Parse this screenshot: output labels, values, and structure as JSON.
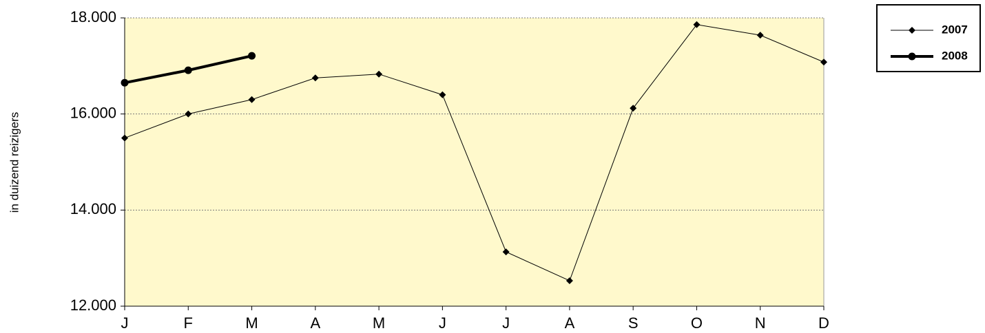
{
  "chart_data": {
    "type": "line",
    "y_axis_label": "in duizend reizigers",
    "categories": [
      "J",
      "F",
      "M",
      "A",
      "M",
      "J",
      "J",
      "A",
      "S",
      "O",
      "N",
      "D"
    ],
    "series": [
      {
        "name": "2007",
        "color": "#000000",
        "marker": "diamond",
        "line_width": 1,
        "values": [
          15500,
          16000,
          16300,
          16750,
          16830,
          16400,
          13130,
          12530,
          16120,
          17860,
          17640,
          17080
        ]
      },
      {
        "name": "2008",
        "color": "#000000",
        "marker": "circle",
        "line_width": 4,
        "values": [
          16650,
          16910,
          17210,
          null,
          null,
          null,
          null,
          null,
          null,
          null,
          null,
          null
        ]
      }
    ],
    "ylim": [
      12000,
      18000
    ],
    "yticks": [
      {
        "value": 12000,
        "label": "12.000"
      },
      {
        "value": 14000,
        "label": "14.000"
      },
      {
        "value": 16000,
        "label": "16.000"
      },
      {
        "value": 18000,
        "label": "18.000"
      }
    ],
    "grid": true,
    "plot_background": "#fff9cc",
    "legend": "upper right"
  }
}
